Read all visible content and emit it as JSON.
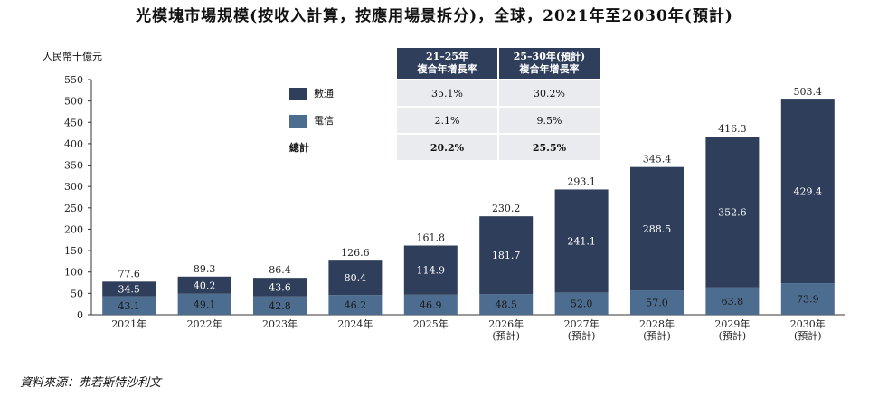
{
  "title": "光模塊市場規模(按收入計算，按應用場景拆分)，全球，2021年至2030年(預計)",
  "source": "資料來源：弗若斯特沙利文",
  "colors": {
    "datacom": "#2f3e5b",
    "telecom": "#4d6d90",
    "axis": "#333333"
  },
  "growth_table": {
    "headers": [
      "21–25年\n複合年增長率",
      "25–30年(預計)\n複合年增長率"
    ],
    "rows": [
      {
        "label": "數通",
        "values": [
          "35.1%",
          "30.2%"
        ]
      },
      {
        "label": "電信",
        "values": [
          "2.1%",
          "9.5%"
        ]
      },
      {
        "label": "總計",
        "values": [
          "20.2%",
          "25.5%"
        ]
      }
    ]
  },
  "chart_data": {
    "type": "bar",
    "stacked": true,
    "ylabel": "人民幣十億元",
    "ylim": [
      0,
      550
    ],
    "yticks": [
      0,
      50,
      100,
      150,
      200,
      250,
      300,
      350,
      400,
      450,
      500,
      550
    ],
    "categories": [
      "2021年",
      "2022年",
      "2023年",
      "2024年",
      "2025年",
      "2026年\n(預計)",
      "2027年\n(預計)",
      "2028年\n(預計)",
      "2029年\n(預計)",
      "2030年\n(預計)"
    ],
    "series": [
      {
        "name": "電信",
        "values": [
          43.1,
          49.1,
          42.8,
          46.2,
          46.9,
          48.5,
          52.0,
          57.0,
          63.8,
          73.9
        ]
      },
      {
        "name": "數通",
        "values": [
          34.5,
          40.2,
          43.6,
          80.4,
          114.9,
          181.7,
          241.1,
          288.5,
          352.6,
          429.4
        ]
      }
    ],
    "totals": [
      77.6,
      89.3,
      86.4,
      126.6,
      161.8,
      230.2,
      293.1,
      345.4,
      416.3,
      503.4
    ],
    "legend": "top-left, inside table"
  }
}
